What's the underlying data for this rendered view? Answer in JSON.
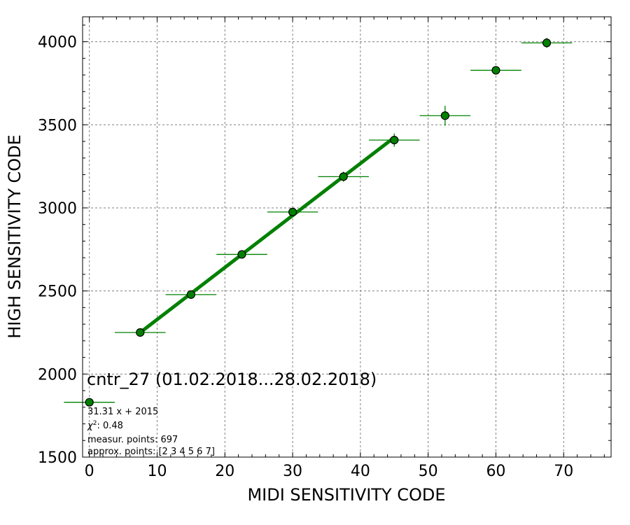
{
  "chart_data": {
    "type": "scatter",
    "title": "cntr_27 (01.02.2018...28.02.2018)",
    "xlabel": "MIDI SENSITIVITY CODE",
    "ylabel": "HIGH SENSITIVITY CODE",
    "xlim": [
      -1,
      77
    ],
    "ylim": [
      1500,
      4150
    ],
    "xticks": [
      0,
      10,
      20,
      30,
      40,
      50,
      60,
      70
    ],
    "yticks": [
      1500,
      2000,
      2500,
      3000,
      3500,
      4000
    ],
    "grid": true,
    "marker_color": "#008000",
    "line_color": "#008000",
    "points": [
      {
        "x": 0,
        "y": 1830,
        "xerr": 3.75,
        "yerr": 0
      },
      {
        "x": 7.5,
        "y": 2250,
        "xerr": 3.75,
        "yerr": 15
      },
      {
        "x": 15,
        "y": 2478,
        "xerr": 3.75,
        "yerr": 15
      },
      {
        "x": 22.5,
        "y": 2720,
        "xerr": 3.75,
        "yerr": 20
      },
      {
        "x": 30,
        "y": 2975,
        "xerr": 3.75,
        "yerr": 25
      },
      {
        "x": 37.5,
        "y": 3188,
        "xerr": 3.75,
        "yerr": 30
      },
      {
        "x": 45,
        "y": 3408,
        "xerr": 3.75,
        "yerr": 40
      },
      {
        "x": 52.5,
        "y": 3555,
        "xerr": 3.75,
        "yerr": 60
      },
      {
        "x": 60,
        "y": 3828,
        "xerr": 3.75,
        "yerr": 25
      },
      {
        "x": 67.5,
        "y": 3993,
        "xerr": 3.75,
        "yerr": 30
      }
    ],
    "fit": {
      "slope": 31.31,
      "intercept": 2015,
      "x_range": [
        7.5,
        45
      ]
    },
    "annotations": {
      "equation": "31.31 x + 2015",
      "chi2_label": "χ",
      "chi2_value": ": 0.48",
      "measur_points": "measur. points: 697",
      "approx_points": "approx. points: [2 3 4 5 6 7]"
    }
  }
}
